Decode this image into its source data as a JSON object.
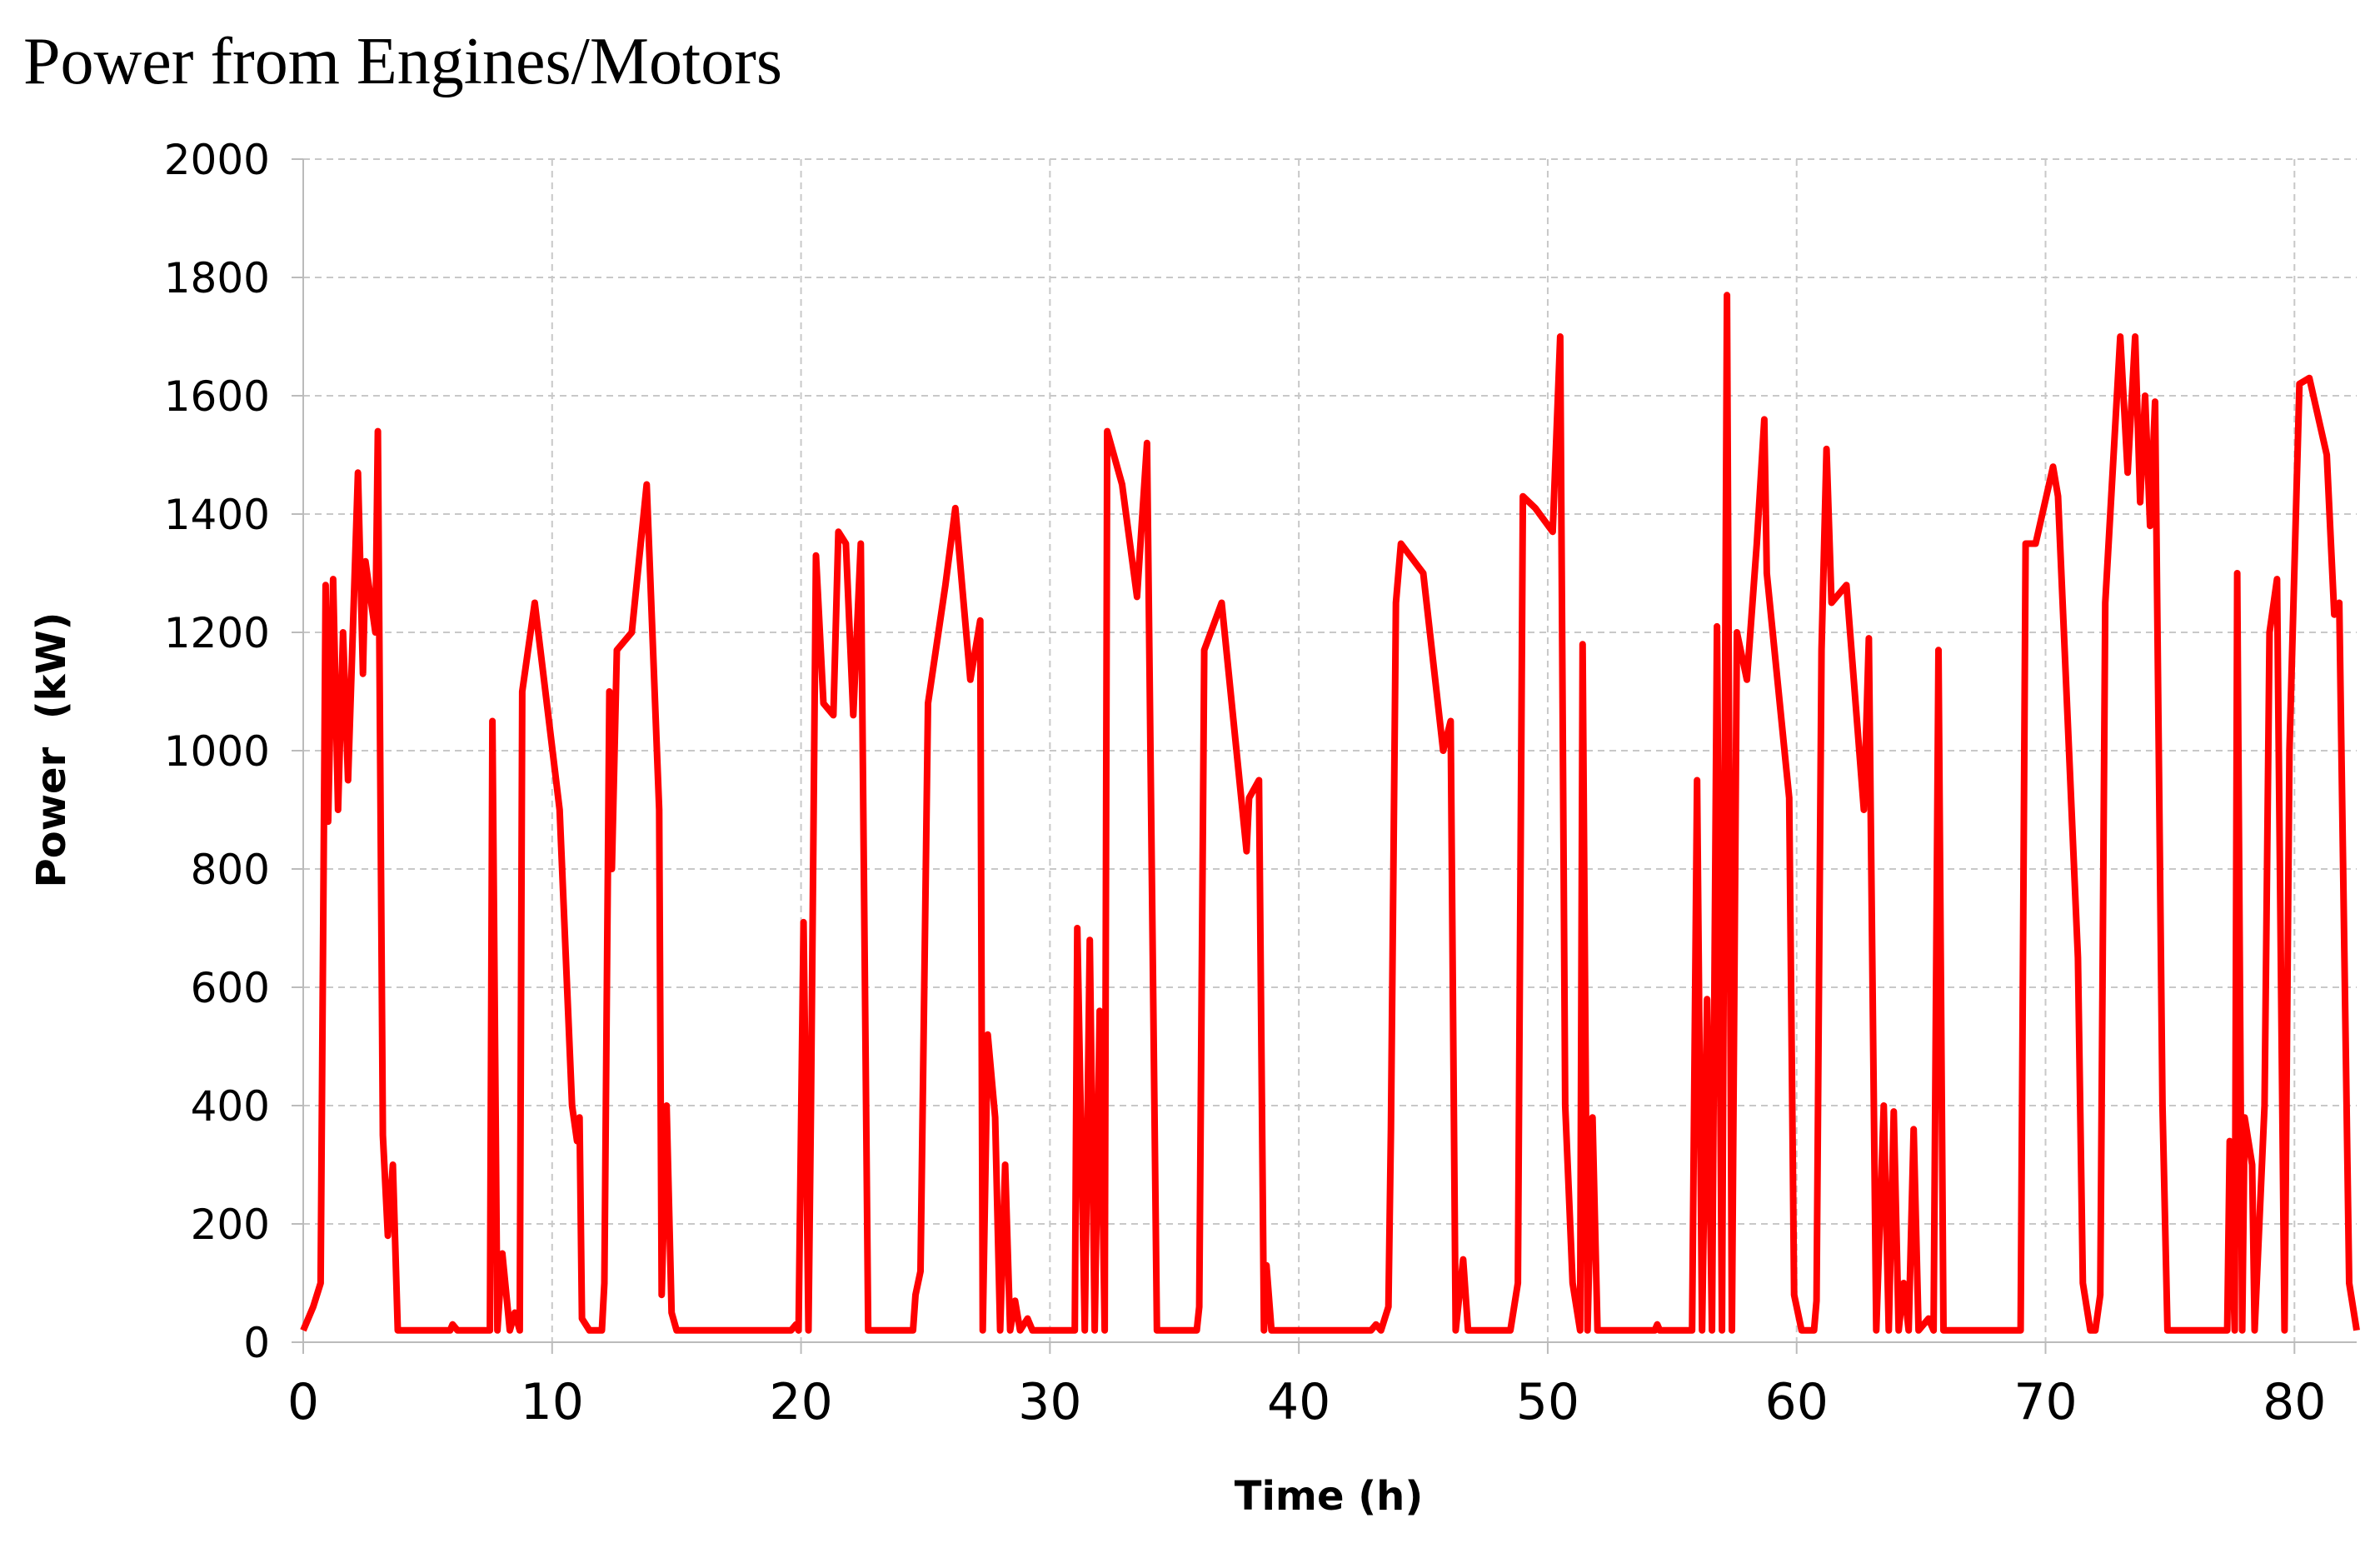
{
  "chart_data": {
    "type": "line",
    "title": "Power from Engines/Motors",
    "x_label": "Time (h)",
    "y_label": "Power  (kW)",
    "x": [
      0,
      0.4,
      0.7,
      0.9,
      1.0,
      1.2,
      1.4,
      1.6,
      1.8,
      2.2,
      2.4,
      2.5,
      2.9,
      3.0,
      3.2,
      3.4,
      3.6,
      3.8,
      5.9,
      6.0,
      6.2,
      7.5,
      7.6,
      7.8,
      8.0,
      8.3,
      8.5,
      8.7,
      8.8,
      9.3,
      10.3,
      10.8,
      11.0,
      11.1,
      11.2,
      11.5,
      12.0,
      12.1,
      12.3,
      12.4,
      12.6,
      13.2,
      13.8,
      14.3,
      14.4,
      14.6,
      14.8,
      15.0,
      19.6,
      19.8,
      19.9,
      20.1,
      20.3,
      20.4,
      20.6,
      20.9,
      21.3,
      21.5,
      21.8,
      22.1,
      22.4,
      22.7,
      24.5,
      24.6,
      24.8,
      25.1,
      25.8,
      26.2,
      26.8,
      27.2,
      27.3,
      27.5,
      27.8,
      28.0,
      28.2,
      28.4,
      28.6,
      28.8,
      29.1,
      29.3,
      31.0,
      31.1,
      31.4,
      31.6,
      31.8,
      32.0,
      32.2,
      32.3,
      32.9,
      33.5,
      33.9,
      34.3,
      35.9,
      36.0,
      36.2,
      36.9,
      37.9,
      38.0,
      38.4,
      38.6,
      38.7,
      38.9,
      42.9,
      43.1,
      43.3,
      43.6,
      43.7,
      43.9,
      44.1,
      45.0,
      45.8,
      46.1,
      46.3,
      46.6,
      46.8,
      48.5,
      48.8,
      49.0,
      49.5,
      50.2,
      50.5,
      50.7,
      51.0,
      51.3,
      51.4,
      51.6,
      51.8,
      52.0,
      54.3,
      54.4,
      54.5,
      55.8,
      56.0,
      56.2,
      56.4,
      56.6,
      56.8,
      57.0,
      57.2,
      57.4,
      57.6,
      58.0,
      58.4,
      58.7,
      58.8,
      59.7,
      59.9,
      60.2,
      60.7,
      60.8,
      61.0,
      61.2,
      61.4,
      62.0,
      62.7,
      62.9,
      63.2,
      63.5,
      63.7,
      63.9,
      64.1,
      64.3,
      64.5,
      64.7,
      64.9,
      65.3,
      65.5,
      65.7,
      65.9,
      69.0,
      69.2,
      69.6,
      70.3,
      70.5,
      71.3,
      71.5,
      71.8,
      72.0,
      72.2,
      72.4,
      73.0,
      73.3,
      73.6,
      73.8,
      74.0,
      74.2,
      74.4,
      74.7,
      74.9,
      77.3,
      77.4,
      77.6,
      77.7,
      77.9,
      78.0,
      78.3,
      78.4,
      78.8,
      79.0,
      79.3,
      79.6,
      79.8,
      80.2,
      80.6,
      81.3,
      81.6,
      81.8,
      82.2,
      82.5
    ],
    "series": [
      {
        "color": "#ff0000",
        "values": [
          20,
          60,
          100,
          1280,
          880,
          1290,
          900,
          1200,
          950,
          1470,
          1130,
          1320,
          1200,
          1540,
          350,
          180,
          300,
          20,
          20,
          30,
          20,
          20,
          1050,
          20,
          150,
          20,
          50,
          20,
          1100,
          1250,
          900,
          400,
          340,
          380,
          40,
          20,
          20,
          100,
          1100,
          800,
          1170,
          1200,
          1450,
          900,
          80,
          400,
          50,
          20,
          20,
          30,
          20,
          710,
          20,
          400,
          1330,
          1080,
          1060,
          1370,
          1350,
          1060,
          1350,
          20,
          20,
          80,
          120,
          1080,
          1280,
          1410,
          1120,
          1220,
          20,
          520,
          380,
          20,
          300,
          20,
          70,
          20,
          40,
          20,
          20,
          700,
          20,
          680,
          20,
          560,
          20,
          1540,
          1450,
          1260,
          1520,
          20,
          20,
          60,
          1170,
          1250,
          830,
          920,
          950,
          20,
          130,
          20,
          20,
          30,
          20,
          60,
          360,
          1250,
          1350,
          1300,
          1000,
          1050,
          20,
          140,
          20,
          20,
          100,
          1430,
          1410,
          1370,
          1700,
          400,
          100,
          20,
          1180,
          20,
          380,
          20,
          20,
          30,
          20,
          20,
          950,
          20,
          580,
          20,
          1210,
          20,
          1770,
          20,
          1200,
          1120,
          1350,
          1560,
          1300,
          920,
          80,
          20,
          20,
          70,
          1170,
          1510,
          1250,
          1280,
          900,
          1190,
          20,
          400,
          20,
          390,
          20,
          100,
          20,
          360,
          20,
          40,
          20,
          1170,
          20,
          20,
          1350,
          1350,
          1480,
          1430,
          650,
          100,
          20,
          20,
          80,
          1250,
          1700,
          1470,
          1700,
          1420,
          1600,
          1380,
          1590,
          400,
          20,
          20,
          340,
          20,
          1300,
          20,
          380,
          300,
          20,
          400,
          1200,
          1290,
          20,
          1000,
          1620,
          1630,
          1500,
          1230,
          1250,
          100,
          20
        ]
      }
    ],
    "xlim": [
      0,
      82.5
    ],
    "xticks": [
      0,
      10,
      20,
      30,
      40,
      50,
      60,
      70,
      80
    ],
    "ylim": [
      0,
      2000
    ],
    "yticks": [
      0,
      200,
      400,
      600,
      800,
      1000,
      1200,
      1400,
      1600,
      1800,
      2000
    ],
    "grid": true
  }
}
